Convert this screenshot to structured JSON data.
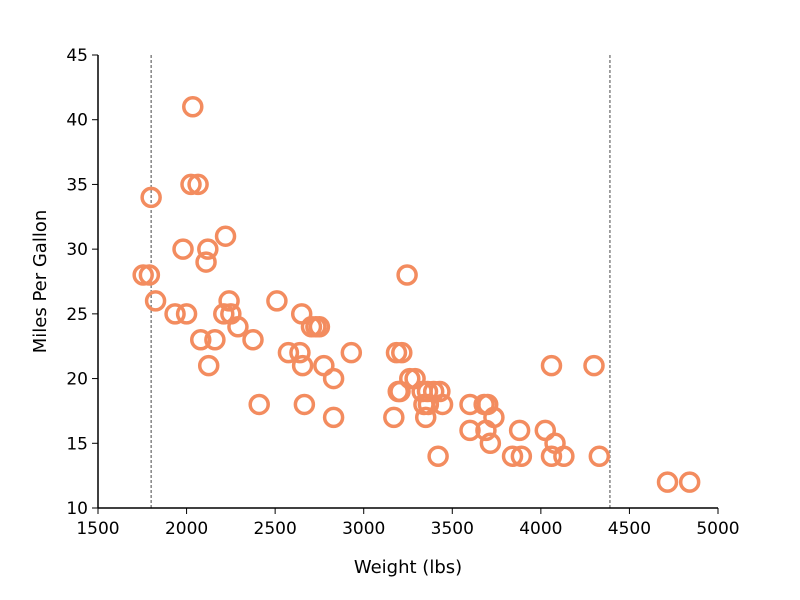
{
  "chart_data": {
    "type": "scatter",
    "title": "",
    "xlabel": "Weight (lbs)",
    "ylabel": "Miles Per Gallon",
    "xlim": [
      1500,
      5000
    ],
    "ylim": [
      10,
      45
    ],
    "x_ticks": [
      1500,
      2000,
      2500,
      3000,
      3500,
      4000,
      4500,
      5000
    ],
    "y_ticks": [
      10,
      15,
      20,
      25,
      30,
      35,
      40,
      45
    ],
    "grid": false,
    "marker": "open-circle",
    "marker_color": "#f38c5f",
    "reference_lines": [
      {
        "orientation": "vertical",
        "x": 1800,
        "style": "dashed",
        "color": "#666666"
      },
      {
        "orientation": "vertical",
        "x": 4390,
        "style": "dashed",
        "color": "#666666"
      }
    ],
    "series": [
      {
        "points": [
          [
            2035,
            41
          ],
          [
            1800,
            34
          ],
          [
            2025,
            35
          ],
          [
            2065,
            35
          ],
          [
            1980,
            30
          ],
          [
            2120,
            30
          ],
          [
            2110,
            29
          ],
          [
            2220,
            31
          ],
          [
            1755,
            28
          ],
          [
            1790,
            28
          ],
          [
            3245,
            28
          ],
          [
            1825,
            26
          ],
          [
            2240,
            26
          ],
          [
            2510,
            26
          ],
          [
            1935,
            25
          ],
          [
            2000,
            25
          ],
          [
            2210,
            25
          ],
          [
            2250,
            25
          ],
          [
            2650,
            25
          ],
          [
            2705,
            24
          ],
          [
            2730,
            24
          ],
          [
            2750,
            24
          ],
          [
            2290,
            24
          ],
          [
            2080,
            23
          ],
          [
            2160,
            23
          ],
          [
            2375,
            23
          ],
          [
            2575,
            22
          ],
          [
            2640,
            22
          ],
          [
            2930,
            22
          ],
          [
            3185,
            22
          ],
          [
            3215,
            22
          ],
          [
            2125,
            21
          ],
          [
            2655,
            21
          ],
          [
            2775,
            21
          ],
          [
            4060,
            21
          ],
          [
            4300,
            21
          ],
          [
            2830,
            20
          ],
          [
            3260,
            20
          ],
          [
            3290,
            20
          ],
          [
            3195,
            19
          ],
          [
            3205,
            19
          ],
          [
            3330,
            19
          ],
          [
            3360,
            19
          ],
          [
            3395,
            19
          ],
          [
            3430,
            19
          ],
          [
            2410,
            18
          ],
          [
            2665,
            18
          ],
          [
            3340,
            18
          ],
          [
            3365,
            18
          ],
          [
            3445,
            18
          ],
          [
            3600,
            18
          ],
          [
            3680,
            18
          ],
          [
            3700,
            18
          ],
          [
            2830,
            17
          ],
          [
            3170,
            17
          ],
          [
            3350,
            17
          ],
          [
            3735,
            17
          ],
          [
            3600,
            16
          ],
          [
            3690,
            16
          ],
          [
            3880,
            16
          ],
          [
            4025,
            16
          ],
          [
            3715,
            15
          ],
          [
            4080,
            15
          ],
          [
            3420,
            14
          ],
          [
            3840,
            14
          ],
          [
            3890,
            14
          ],
          [
            4060,
            14
          ],
          [
            4130,
            14
          ],
          [
            4330,
            14
          ],
          [
            4715,
            12
          ],
          [
            4840,
            12
          ]
        ]
      }
    ]
  }
}
